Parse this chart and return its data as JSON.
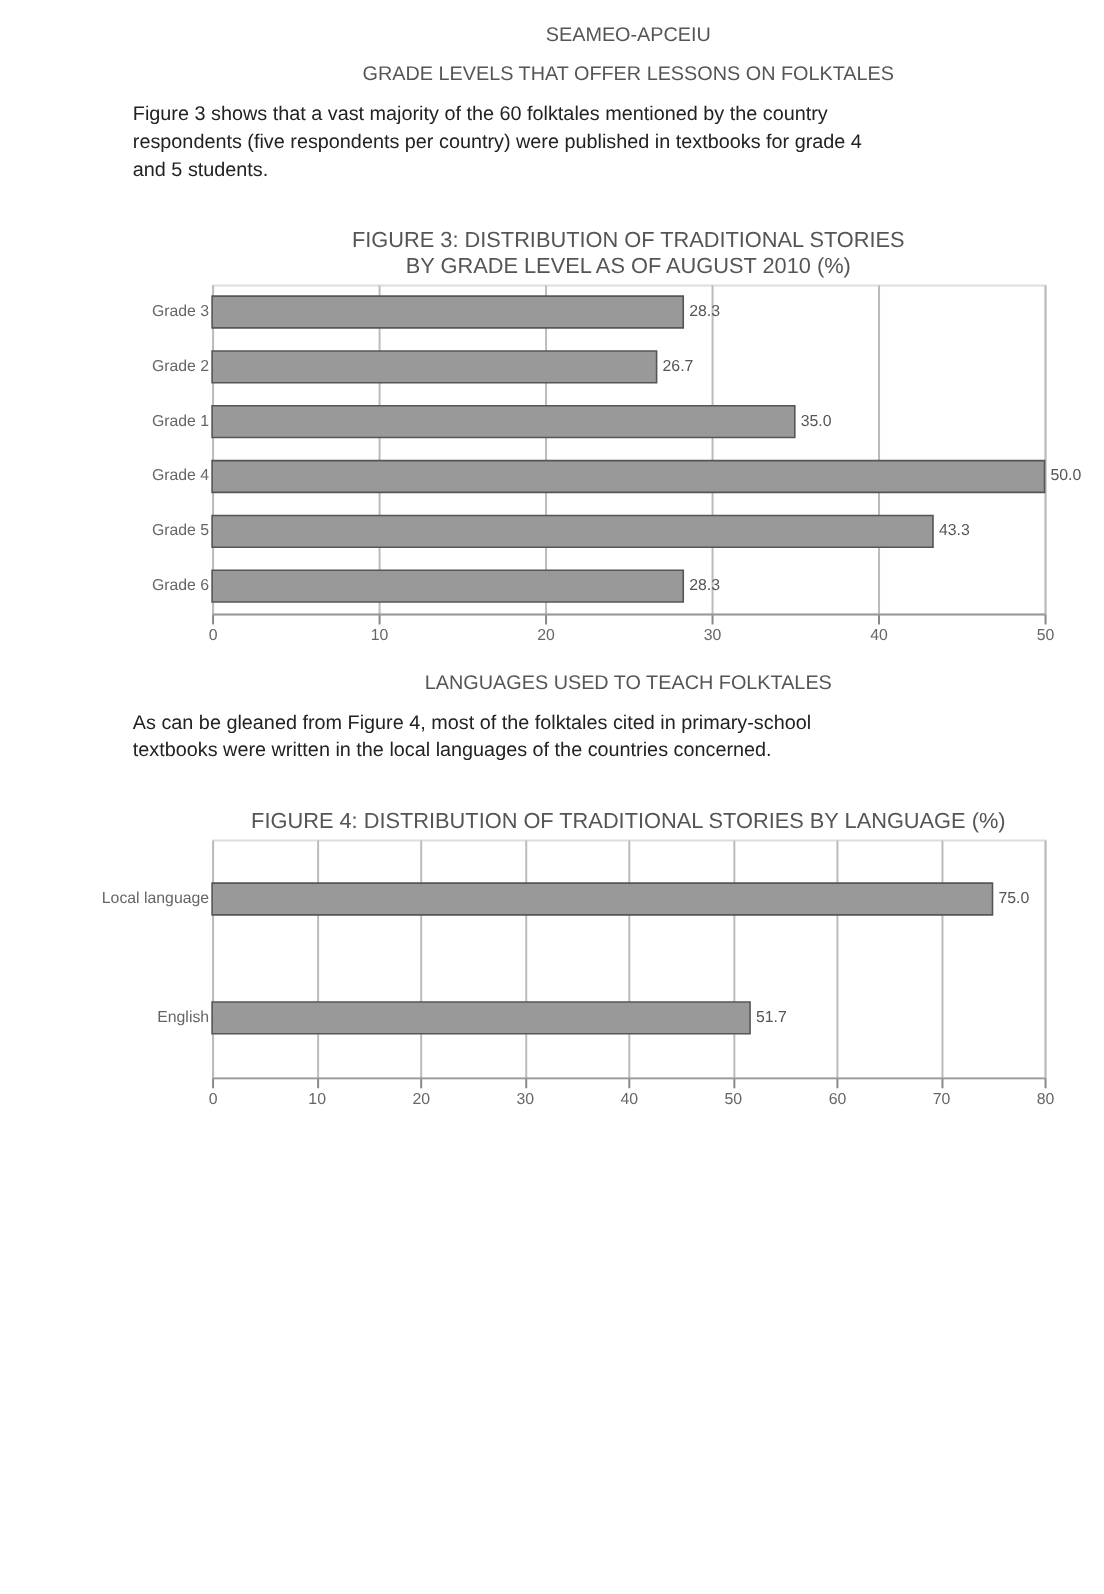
{
  "chart_data": [
    {
      "type": "bar",
      "orientation": "horizontal",
      "title": "FIGURE 3: DISTRIBUTION OF TRADITIONAL STORIES\nBY GRADE LEVEL AS OF AUGUST 2010 (%)",
      "annotations": [
        "SEAMEO-APCEIU",
        "GRADE LEVELS THAT OFFER LESSONS ON FOLKTALES",
        "Figure 3 shows that a vast majority of the 60 folktales mentioned by the country respondents (five respondents per country) were published in textbooks for grade 4 and 5 students."
      ],
      "categories": [
        "Grade 3",
        "Grade 2",
        "Grade 1",
        "Grade 4",
        "Grade 5",
        "Grade 6"
      ],
      "values": [
        28.3,
        26.7,
        35.0,
        50.0,
        43.3,
        28.3
      ],
      "value_labels": [
        "28.3",
        "26.7",
        "35.0",
        "50.0",
        "43.3",
        "28.3"
      ],
      "color": "#999999",
      "xlim": [
        0,
        50
      ],
      "xticks": [
        0,
        10,
        20,
        30,
        40,
        50
      ],
      "grid": "x"
    },
    {
      "type": "bar",
      "orientation": "horizontal",
      "title": "FIGURE 4: DISTRIBUTION OF TRADITIONAL STORIES BY LANGUAGE (%)",
      "annotations": [
        "LANGUAGES USED TO TEACH FOLKTALES",
        "As can be gleaned from Figure 4, most of the folktales cited in primary-school textbooks were written in the local languages of the countries concerned."
      ],
      "categories": [
        "Local language",
        "English"
      ],
      "values": [
        75.0,
        51.7
      ],
      "value_labels": [
        "75.0",
        "51.7"
      ],
      "color": "#999999",
      "xlim": [
        0,
        80
      ],
      "xticks": [
        0,
        10,
        20,
        30,
        40,
        50,
        60,
        70,
        80
      ],
      "grid": "x"
    }
  ]
}
